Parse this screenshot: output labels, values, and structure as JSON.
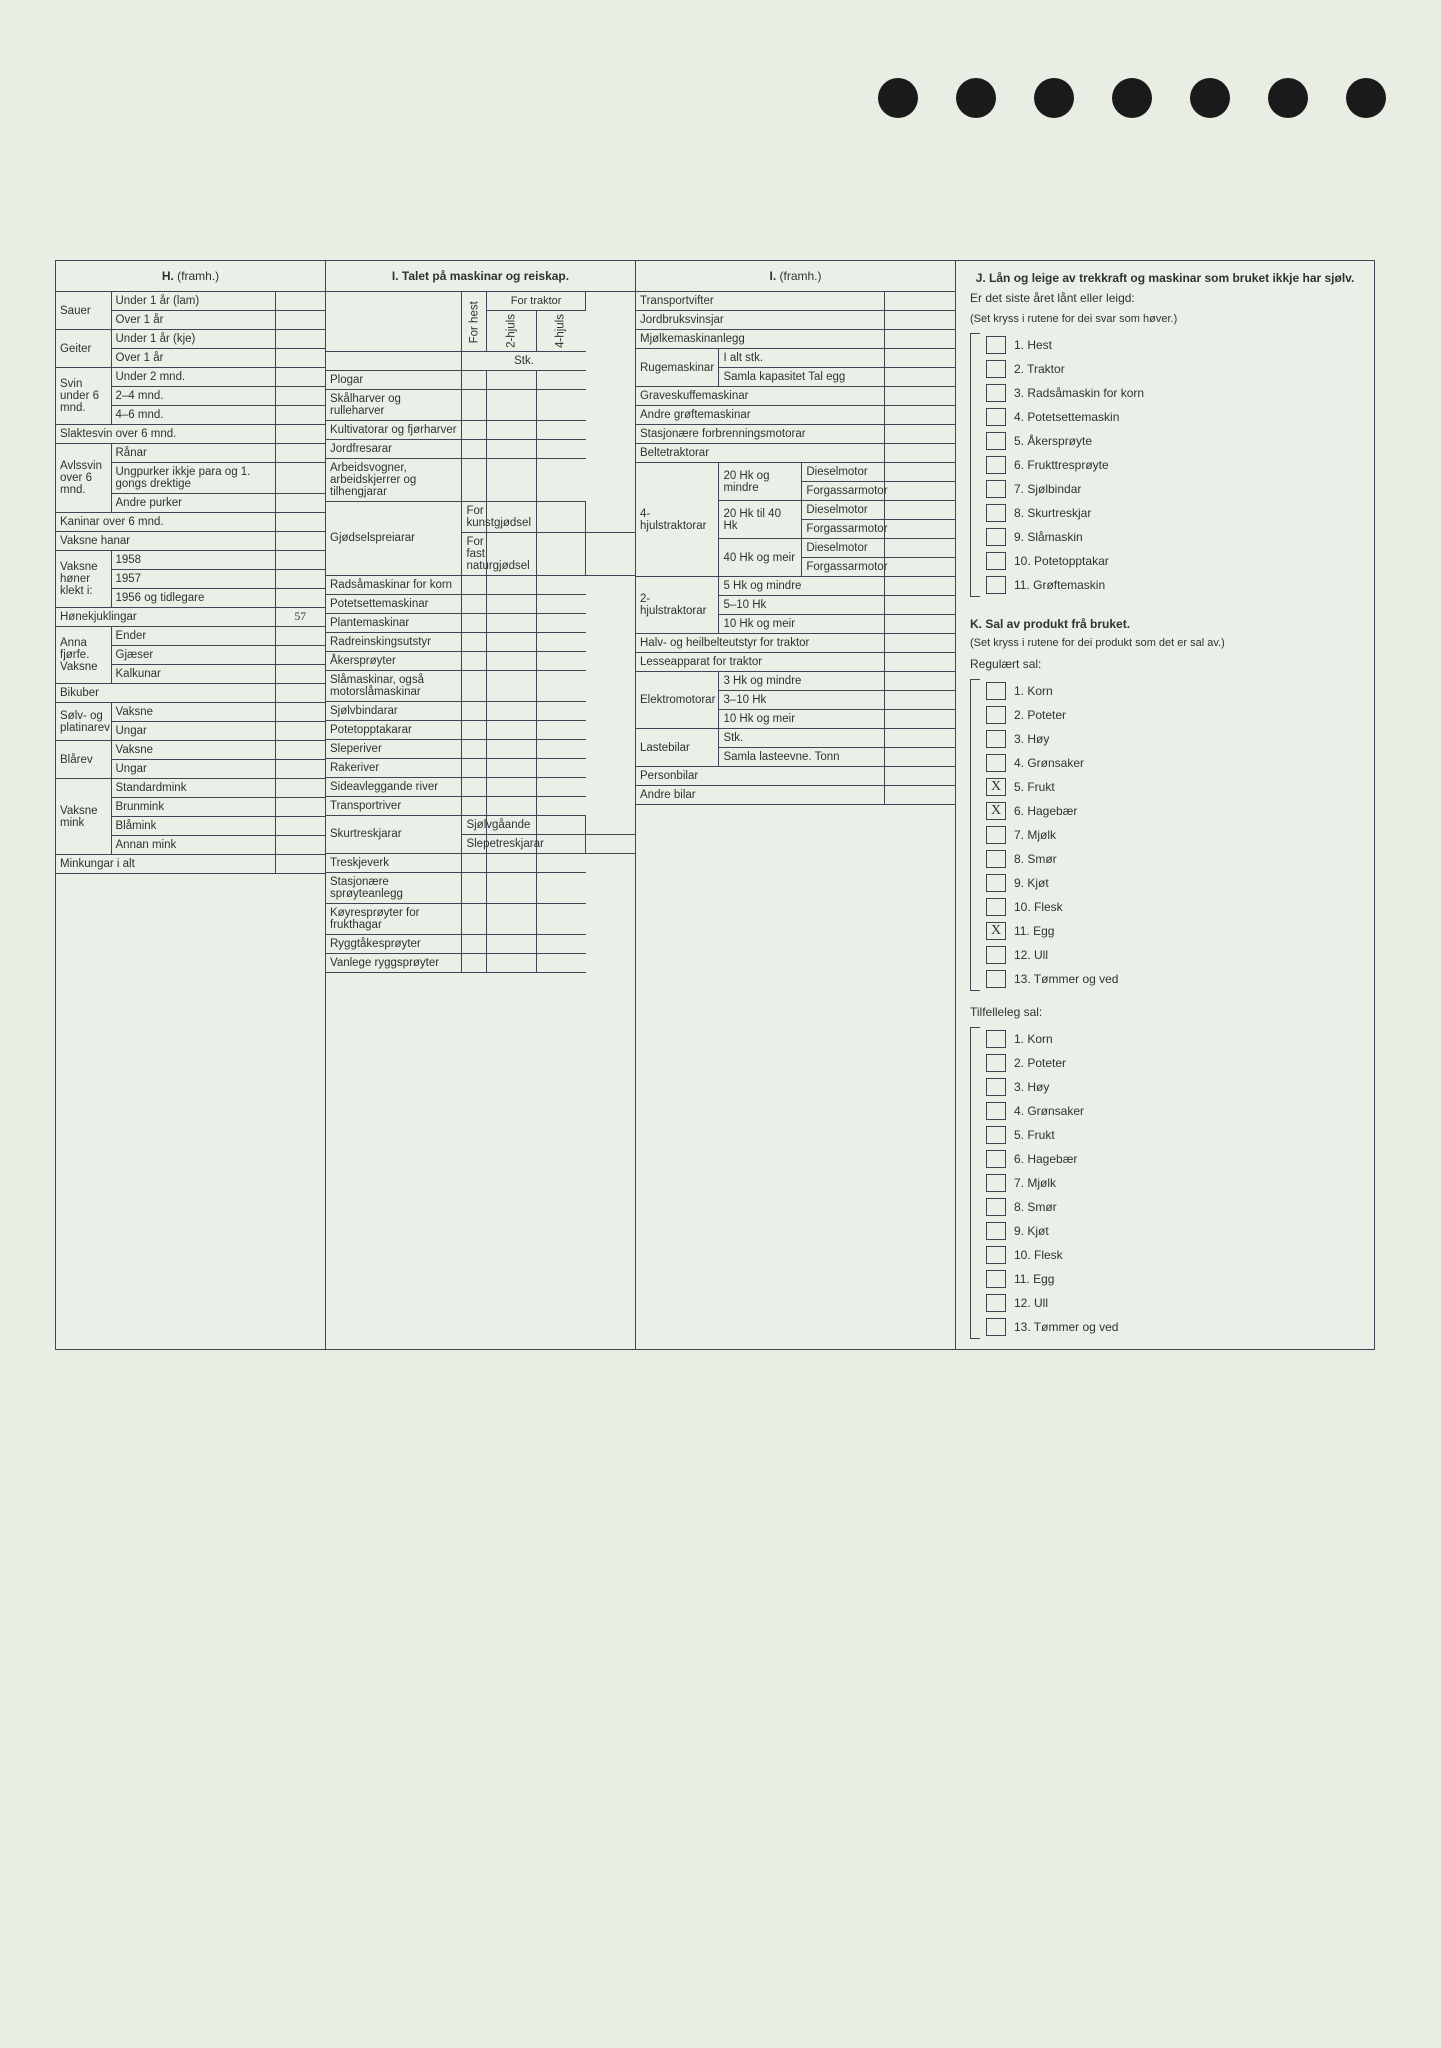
{
  "holes_count": 7,
  "H": {
    "title": "H.",
    "title_suffix": "(framh.)",
    "groups": [
      {
        "label": "Sauer",
        "rows": [
          {
            "t": "Under 1 år (lam)"
          },
          {
            "t": "Over 1 år"
          }
        ]
      },
      {
        "label": "Geiter",
        "rows": [
          {
            "t": "Under 1 år (kje)"
          },
          {
            "t": "Over 1 år"
          }
        ]
      },
      {
        "label": "Svin under 6 mnd.",
        "rows": [
          {
            "t": "Under 2 mnd."
          },
          {
            "t": "2–4 mnd."
          },
          {
            "t": "4–6 mnd."
          }
        ]
      }
    ],
    "slaktesvin": "Slaktesvin over 6 mnd.",
    "avls": {
      "label": "Avlssvin over 6 mnd.",
      "rows": [
        {
          "t": "Rånar"
        },
        {
          "t": "Ungpurker ikkje para og 1. gongs drektige"
        },
        {
          "t": "Andre purker"
        }
      ]
    },
    "kaninar": "Kaninar over 6 mnd.",
    "vaksne_hanar": "Vaksne hanar",
    "honer": {
      "label": "Vaksne høner klekt i:",
      "rows": [
        {
          "t": "1958"
        },
        {
          "t": "1957"
        },
        {
          "t": "1956 og tidlegare"
        }
      ]
    },
    "honekjuklingar": {
      "t": "Hønekjuklingar",
      "v": "57"
    },
    "fjorfe": {
      "label": "Anna fjørfe. Vaksne",
      "rows": [
        {
          "t": "Ender"
        },
        {
          "t": "Gjæser"
        },
        {
          "t": "Kalkunar"
        }
      ]
    },
    "bikuber": "Bikuber",
    "solv": {
      "label": "Sølv- og platinarev",
      "rows": [
        {
          "t": "Vaksne"
        },
        {
          "t": "Ungar"
        }
      ]
    },
    "blaa": {
      "label": "Blårev",
      "rows": [
        {
          "t": "Vaksne"
        },
        {
          "t": "Ungar"
        }
      ]
    },
    "mink": {
      "label": "Vaksne mink",
      "rows": [
        {
          "t": "Standardmink"
        },
        {
          "t": "Brunmink"
        },
        {
          "t": "Blåmink"
        },
        {
          "t": "Annan mink"
        }
      ]
    },
    "minkungar": "Minkungar i alt"
  },
  "I": {
    "title": "I. Talet på maskinar og reiskap.",
    "vcols": [
      "For hest",
      "2-hjuls",
      "4-hjuls"
    ],
    "for_traktor": "For traktor",
    "stk": "Stk.",
    "rows1": [
      "Plogar",
      "Skålharver og rulleharver",
      "Kultivatorar og fjørharver",
      "Jordfresarar",
      "Arbeidsvogner, arbeidskjerrer og tilhengjarar"
    ],
    "gjodsel": {
      "label": "Gjødselspreiarar",
      "rows": [
        "For kunstgjødsel",
        "For fast naturgjødsel"
      ]
    },
    "rows2": [
      "Radsåmaskinar for korn",
      "Potetsettemaskinar",
      "Plantemaskinar",
      "Radreinskingsutstyr",
      "Åkersprøyter",
      "Slåmaskinar, også motorslåmaskinar",
      "Sjølvbindarar",
      "Potetopptakarar",
      "Sleperiver",
      "Rakeriver",
      "Sideavleggande river",
      "Transportriver"
    ],
    "skur": {
      "label": "Skurtreskjarar",
      "rows": [
        "Sjølvgåande",
        "Slepetreskjarar"
      ]
    },
    "rows3": [
      "Treskjeverk",
      "Stasjonære sprøyteanlegg",
      "Køyresprøyter for frukthagar",
      "Ryggtåkesprøyter",
      "Vanlege ryggsprøyter"
    ]
  },
  "I2": {
    "title": "I.",
    "title_suffix": "(framh.)",
    "simple": [
      "Transportvifter",
      "Jordbruksvinsjar",
      "Mjølkemaskinanlegg"
    ],
    "ruge": {
      "label": "Rugemaskinar",
      "rows": [
        "I alt stk.",
        "Samla kapasitet Tal egg"
      ]
    },
    "simple2": [
      "Graveskuffemaskinar",
      "Andre grøftemaskinar",
      "Stasjonære forbrenningsmotorar",
      "Beltetraktorar"
    ],
    "hjuls4": {
      "label": "4-hjulstraktorar",
      "groups": [
        {
          "l": "20 Hk og mindre",
          "r": [
            "Dieselmotor",
            "Forgassarmotor"
          ]
        },
        {
          "l": "20 Hk til 40 Hk",
          "r": [
            "Dieselmotor",
            "Forgassarmotor"
          ]
        },
        {
          "l": "40 Hk og meir",
          "r": [
            "Dieselmotor",
            "Forgassarmotor"
          ]
        }
      ]
    },
    "hjuls2": {
      "label": "2-hjulstraktorar",
      "rows": [
        "5 Hk og mindre",
        "5–10 Hk",
        "10 Hk og meir"
      ]
    },
    "halv": "Halv- og heilbelteutstyr for traktor",
    "lesse": "Lesseapparat for traktor",
    "elektro": {
      "label": "Elektromotorar",
      "rows": [
        "3 Hk og mindre",
        "3–10 Hk",
        "10 Hk og meir"
      ]
    },
    "laste": {
      "label": "Lastebilar",
      "rows": [
        "Stk.",
        "Samla lasteevne. Tonn"
      ]
    },
    "simple3": [
      "Personbilar",
      "Andre bilar"
    ]
  },
  "J": {
    "title": "J. Lån og leige av trekkraft og maskinar som bruket ikkje har sjølv.",
    "sub1": "Er det siste året lånt eller leigd:",
    "sub2": "(Set kryss i rutene for dei svar som høver.)",
    "items": [
      "1. Hest",
      "2. Traktor",
      "3. Radsåmaskin for korn",
      "4. Potetsettemaskin",
      "5. Åkersprøyte",
      "6. Frukttresprøyte",
      "7. Sjølbindar",
      "8. Skurtreskjar",
      "9. Slåmaskin",
      "10. Potetopptakar",
      "11. Grøftemaskin"
    ]
  },
  "K": {
    "title": "K. Sal av produkt frå bruket.",
    "sub": "(Set kryss i rutene for dei produkt som det er sal av.)",
    "reg_title": "Regulært sal:",
    "reg": [
      {
        "t": "1. Korn"
      },
      {
        "t": "2. Poteter"
      },
      {
        "t": "3. Høy"
      },
      {
        "t": "4. Grønsaker"
      },
      {
        "t": "5. Frukt",
        "x": "X"
      },
      {
        "t": "6. Hagebær",
        "x": "X"
      },
      {
        "t": "7. Mjølk"
      },
      {
        "t": "8. Smør"
      },
      {
        "t": "9. Kjøt"
      },
      {
        "t": "10. Flesk"
      },
      {
        "t": "11. Egg",
        "x": "X"
      },
      {
        "t": "12. Ull"
      },
      {
        "t": "13. Tømmer og ved"
      }
    ],
    "tilf_title": "Tilfelleleg sal:",
    "tilf": [
      {
        "t": "1. Korn"
      },
      {
        "t": "2. Poteter"
      },
      {
        "t": "3. Høy"
      },
      {
        "t": "4. Grønsaker"
      },
      {
        "t": "5. Frukt"
      },
      {
        "t": "6. Hagebær"
      },
      {
        "t": "7. Mjølk"
      },
      {
        "t": "8. Smør"
      },
      {
        "t": "9. Kjøt"
      },
      {
        "t": "10. Flesk"
      },
      {
        "t": "11. Egg"
      },
      {
        "t": "12. Ull"
      },
      {
        "t": "13. Tømmer og ved"
      }
    ]
  }
}
